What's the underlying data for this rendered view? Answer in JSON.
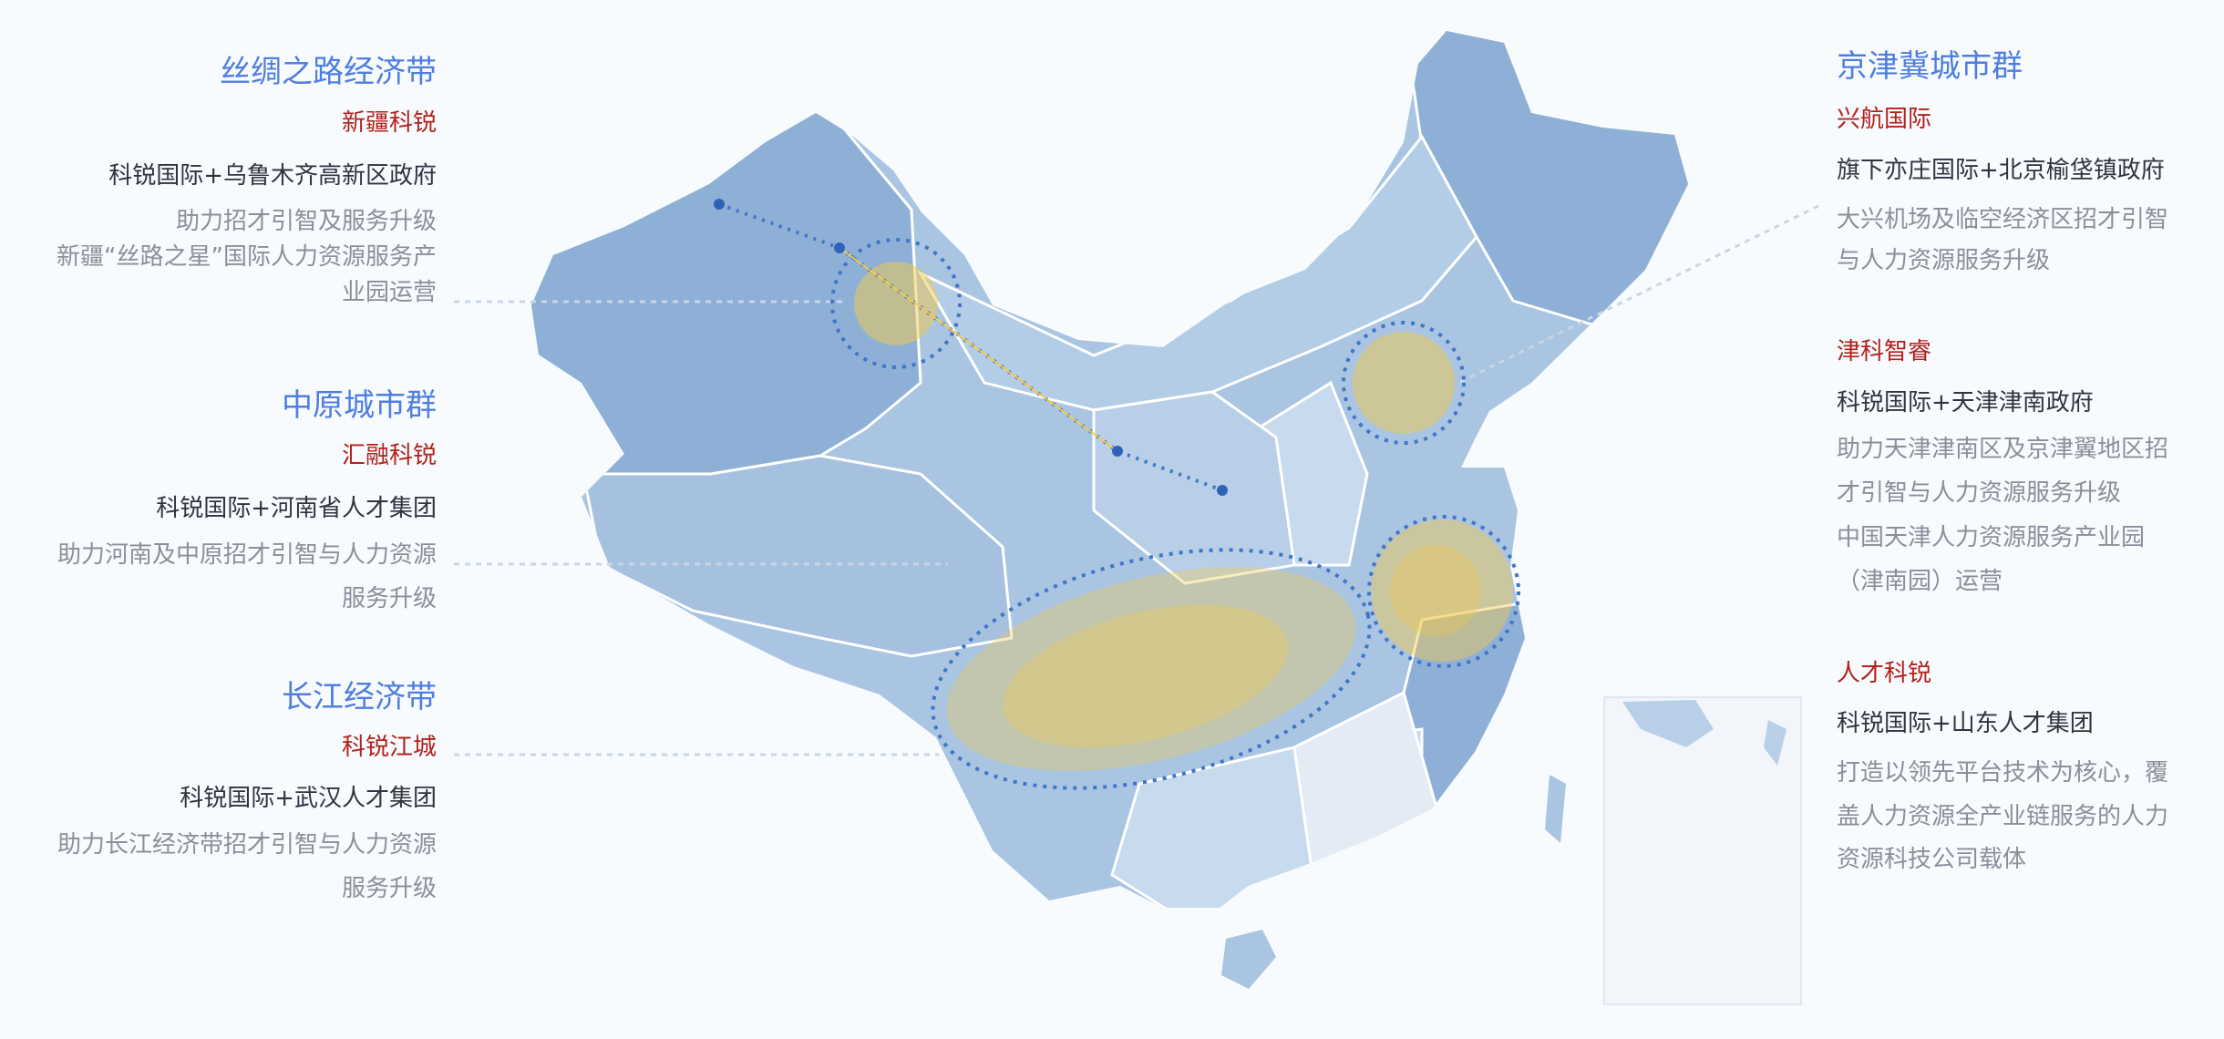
{
  "left": [
    {
      "title": "丝绸之路经济带",
      "company": "新疆科锐",
      "partner": "科锐国际+乌鲁木齐高新区政府",
      "desc": [
        "助力招才引智及服务升级",
        "新疆“丝路之星”国际人力资源服务产",
        "业园运营"
      ]
    },
    {
      "title": "中原城市群",
      "company": "汇融科锐",
      "partner": "科锐国际+河南省人才集团",
      "desc": [
        "助力河南及中原招才引智与人力资源",
        "服务升级"
      ]
    },
    {
      "title": "长江经济带",
      "company": "科锐江城",
      "partner": "科锐国际+武汉人才集团",
      "desc": [
        "助力长江经济带招才引智与人力资源",
        "服务升级"
      ]
    }
  ],
  "right": {
    "title": "京津冀城市群",
    "items": [
      {
        "company": "兴航国际",
        "partner": "旗下亦庄国际+北京榆垡镇政府",
        "desc": [
          "大兴机场及临空经济区招才引智",
          "与人力资源服务升级"
        ]
      },
      {
        "company": "津科智睿",
        "partner": "科锐国际+天津津南政府",
        "desc": [
          "助力天津津南区及京津翼地区招",
          "才引智与人力资源服务升级",
          "中国天津人力资源服务产业园",
          "（津南园）运营"
        ]
      },
      {
        "company": "人才科锐",
        "partner": "科锐国际+山东人才集团",
        "desc": [
          "打造以领先平台技术为核心，覆",
          "盖人力资源全产业链服务的人力",
          "资源科技公司载体"
        ]
      }
    ]
  },
  "colors": {
    "background": "#f7fbfe",
    "title": "#4f7ee0",
    "company": "#b3211c",
    "map_dark": "#8fb0d6",
    "map_mid": "#a9c5e2",
    "map_light": "#c8daed",
    "map_pale": "#e3ecf5",
    "highlight": "#f2c94c",
    "dashed": "#3f76c8"
  }
}
